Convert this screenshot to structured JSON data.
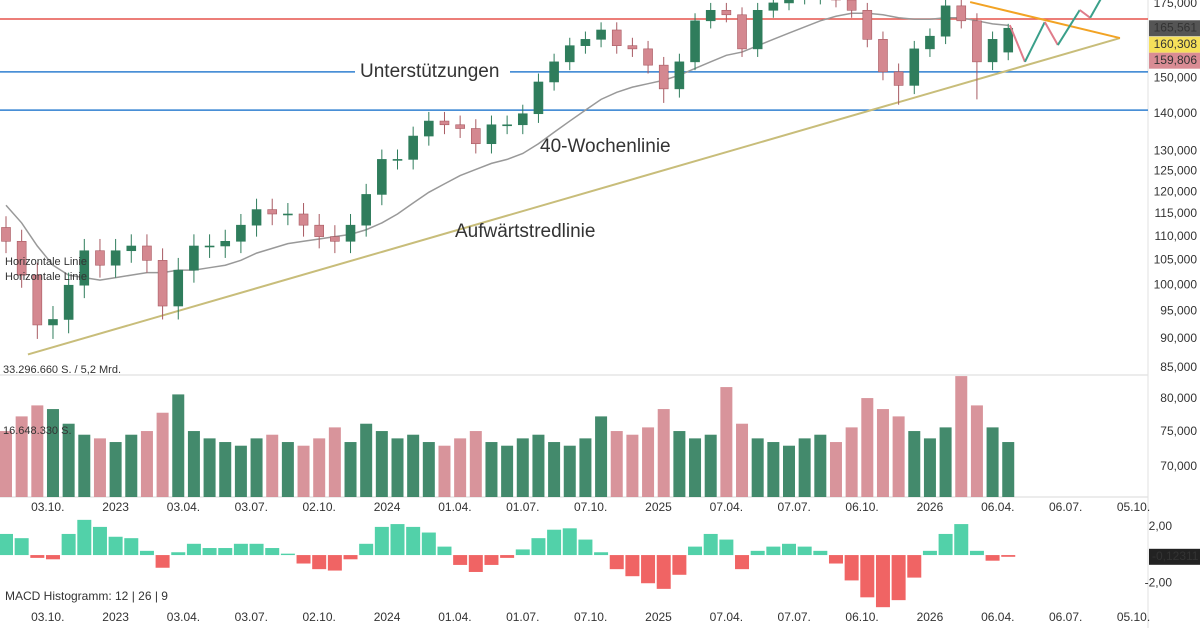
{
  "chart_data": {
    "type": "candlestick",
    "x": [
      0,
      3,
      6,
      9,
      12,
      15,
      18,
      21,
      24,
      27,
      30,
      33,
      36,
      39,
      42,
      45,
      48,
      51,
      54,
      57,
      60,
      63,
      66,
      69,
      72,
      75,
      78,
      81,
      84,
      87,
      90,
      93,
      96,
      99,
      102,
      105,
      108,
      111,
      114,
      117,
      120,
      123,
      126,
      129,
      132,
      135,
      138,
      141,
      144,
      147,
      150,
      153,
      156,
      159,
      162,
      165,
      168,
      171,
      174,
      177,
      180,
      183,
      186,
      189,
      192
    ],
    "xlim": [
      -1,
      221
    ],
    "xticks": [
      {
        "value": 8,
        "label": "03.10."
      },
      {
        "value": 21,
        "label": "2023"
      },
      {
        "value": 34,
        "label": "03.04."
      },
      {
        "value": 47,
        "label": "03.07."
      },
      {
        "value": 60,
        "label": "02.10."
      },
      {
        "value": 73,
        "label": "2024"
      },
      {
        "value": 86,
        "label": "01.04."
      },
      {
        "value": 99,
        "label": "01.07."
      },
      {
        "value": 112,
        "label": "07.10."
      },
      {
        "value": 125,
        "label": "2025"
      },
      {
        "value": 138,
        "label": "07.04."
      },
      {
        "value": 151,
        "label": "07.07."
      },
      {
        "value": 164,
        "label": "06.10."
      },
      {
        "value": 177,
        "label": "2026"
      },
      {
        "value": 190,
        "label": "06.04."
      },
      {
        "value": 203,
        "label": "06.07."
      },
      {
        "value": 216,
        "label": "05.10."
      }
    ],
    "open": [
      112000,
      109000,
      102000,
      92500,
      93500,
      100000,
      107000,
      104000,
      107000,
      108000,
      105000,
      96000,
      103000,
      108000,
      108000,
      109000,
      112500,
      116000,
      115000,
      115000,
      112500,
      110000,
      109000,
      112500,
      119500,
      128000,
      128000,
      134000,
      138000,
      137000,
      136000,
      132000,
      137000,
      137000,
      140000,
      149000,
      155000,
      160000,
      162000,
      165000,
      160000,
      159000,
      154000,
      147000,
      155000,
      168000,
      171500,
      170000,
      159000,
      171500,
      174000,
      176000,
      176000,
      176000,
      175000,
      171500,
      162000,
      152000,
      148000,
      159000,
      163000,
      173000,
      168000,
      155000,
      158000
    ],
    "high": [
      114500,
      111500,
      104500,
      96000,
      102500,
      109500,
      109500,
      109500,
      110500,
      110500,
      107500,
      105500,
      110500,
      110500,
      111500,
      115000,
      118500,
      118500,
      117500,
      117500,
      115000,
      112500,
      115000,
      122000,
      130500,
      130500,
      136500,
      140500,
      140500,
      139500,
      138500,
      139500,
      139500,
      142500,
      151500,
      157500,
      162500,
      164500,
      167500,
      167500,
      162500,
      161500,
      156500,
      157500,
      170500,
      174000,
      174000,
      172500,
      174000,
      176500,
      178500,
      178500,
      178500,
      178500,
      177500,
      174000,
      164500,
      154500,
      161500,
      165500,
      175500,
      175500,
      170500,
      164500,
      167000
    ],
    "low": [
      106500,
      99500,
      90000,
      90000,
      91000,
      97500,
      101500,
      101500,
      104500,
      102500,
      93500,
      93500,
      100500,
      105500,
      105500,
      106500,
      110000,
      112500,
      112500,
      110000,
      107500,
      106500,
      106500,
      110000,
      117000,
      125500,
      125500,
      131500,
      134500,
      133500,
      129500,
      129500,
      134500,
      134500,
      137500,
      146500,
      152500,
      157500,
      159500,
      157500,
      156500,
      151500,
      143000,
      144500,
      152500,
      165500,
      167500,
      156500,
      156500,
      169000,
      171500,
      173500,
      173500,
      172500,
      169000,
      159500,
      149500,
      142500,
      145500,
      156500,
      160500,
      165500,
      144000,
      152500,
      155500
    ],
    "close": [
      109000,
      102000,
      92500,
      93500,
      100000,
      107000,
      104000,
      107000,
      108000,
      105000,
      96000,
      103000,
      108000,
      108000,
      109000,
      112500,
      116000,
      115000,
      115000,
      112500,
      110000,
      109000,
      112500,
      119500,
      128000,
      128000,
      134000,
      138000,
      137000,
      136000,
      132000,
      137000,
      137000,
      140000,
      149000,
      155000,
      160000,
      162000,
      165000,
      160000,
      159000,
      154000,
      147000,
      155000,
      168000,
      171500,
      170000,
      159000,
      171500,
      174000,
      176000,
      176000,
      176000,
      175000,
      171500,
      162000,
      152000,
      148000,
      159000,
      163000,
      173000,
      168000,
      155000,
      162000,
      165561
    ],
    "colors": {
      "up": "#2f7d5c",
      "down": "#d48890"
    },
    "log": true,
    "ylim": [
      70000,
      175000
    ],
    "yticks": [
      {
        "value": 175000,
        "label": "175,000"
      },
      {
        "value": 150000,
        "label": "150,000"
      },
      {
        "value": 140000,
        "label": "140,000"
      },
      {
        "value": 130000,
        "label": "130,000"
      },
      {
        "value": 125000,
        "label": "125,000"
      },
      {
        "value": 120000,
        "label": "120,000"
      },
      {
        "value": 115000,
        "label": "115,000"
      },
      {
        "value": 110000,
        "label": "110,000"
      },
      {
        "value": 105000,
        "label": "105,000"
      },
      {
        "value": 100000,
        "label": "100,000"
      },
      {
        "value": 95000,
        "label": "95,000"
      },
      {
        "value": 90000,
        "label": "90,000"
      },
      {
        "value": 85000,
        "label": "85,000"
      },
      {
        "value": 80000,
        "label": "80,000"
      },
      {
        "value": 75000,
        "label": "75,000"
      },
      {
        "value": 70000,
        "label": "70,000"
      }
    ],
    "price_labels": [
      {
        "value": 165561,
        "label": "165,561",
        "color": "#555555",
        "text_color": "#ffffff"
      },
      {
        "value": 160308,
        "label": "160,308",
        "color": "#f6e05a",
        "text_color": "#222222"
      },
      {
        "value": 159806,
        "label": "159,806",
        "color": "#d98c94",
        "text_color": "#ffffff"
      }
    ],
    "horizontal_lines": [
      {
        "name": "Horizontale Linie",
        "color": "#e5534b",
        "value": 168600
      },
      {
        "name": "Horizontale Linie",
        "color": "#2f7fd1",
        "value": 152000
      },
      {
        "color": "#2f7fd1",
        "value": 141000
      }
    ],
    "annotations": [
      {
        "text": "Unterstützungen",
        "color": "#2f7fd1"
      },
      {
        "text": "40-Wochenlinie",
        "color": "#888888"
      }
    ],
    "moving_average": {
      "color": "#999999",
      "values": [
        117000,
        113000,
        108000,
        104000,
        102000,
        101500,
        101000,
        101500,
        102000,
        102500,
        102500,
        103000,
        103000,
        103500,
        104000,
        105000,
        106500,
        107500,
        108500,
        109000,
        109500,
        110000,
        110500,
        111500,
        113000,
        115000,
        117500,
        120000,
        122000,
        124000,
        125500,
        127000,
        128000,
        129500,
        132000,
        135000,
        138000,
        141000,
        144000,
        146000,
        147500,
        148500,
        149500,
        151000,
        153000,
        155000,
        157000,
        158000,
        160000,
        162000,
        164000,
        166000,
        168000,
        169500,
        170500,
        170500,
        170000,
        169000,
        168500,
        168500,
        169000,
        169000,
        168000,
        167000,
        166500
      ]
    },
    "trendlines": [
      {
        "name": "Aufwärtstredlinie",
        "color": "#c8bd7a",
        "x": [
          4.2,
          213.4
        ],
        "values": [
          87300,
          162400
        ]
      },
      {
        "color": "#f2a324",
        "x": [
          184.7,
          213.4
        ],
        "values": [
          174300,
          162400
        ]
      }
    ],
    "projection": {
      "x": [
        192.3,
        195.2,
        199.0,
        201.5,
        205.7,
        207.7,
        210.5
      ],
      "values": [
        166600,
        155000,
        167600,
        160200,
        171600,
        169000,
        177800
      ],
      "up_color": "#3aa08a",
      "down_color": "#e07b8a"
    },
    "volume": {
      "values": [
        18000000,
        22000000,
        25000000,
        24000000,
        20000000,
        17000000,
        16000000,
        15000000,
        17000000,
        18000000,
        23000000,
        28000000,
        18000000,
        16000000,
        15000000,
        14000000,
        16000000,
        17000000,
        15000000,
        14000000,
        16000000,
        19000000,
        15000000,
        20000000,
        18000000,
        16000000,
        17000000,
        15000000,
        14000000,
        16000000,
        18000000,
        15000000,
        14000000,
        16000000,
        17000000,
        15000000,
        14000000,
        16000000,
        22000000,
        18000000,
        17000000,
        19000000,
        24000000,
        18000000,
        16000000,
        17000000,
        30000000,
        20000000,
        16000000,
        15000000,
        14000000,
        16000000,
        17000000,
        15000000,
        19000000,
        27000000,
        24000000,
        22000000,
        18000000,
        16000000,
        19000000,
        33000000,
        25000000,
        19000000,
        15000000
      ],
      "ylim": [
        0,
        33296660
      ],
      "yticks": [
        {
          "value": 33296660,
          "label": "33.296.660 S. / 5,2 Mrd."
        },
        {
          "value": 16648330,
          "label": "16.648.330 S."
        }
      ]
    },
    "macd": {
      "title": "MACD Histogramm: 12 | 26 | 9",
      "values": [
        1.5,
        1.2,
        -0.2,
        -0.3,
        1.5,
        2.5,
        2.0,
        1.3,
        1.2,
        0.3,
        -0.9,
        0.2,
        0.8,
        0.5,
        0.5,
        0.8,
        0.8,
        0.5,
        0.1,
        -0.6,
        -1.0,
        -1.1,
        -0.3,
        0.8,
        2.0,
        2.2,
        2.0,
        1.6,
        0.6,
        -0.7,
        -1.2,
        -0.7,
        -0.2,
        0.4,
        1.2,
        1.8,
        1.9,
        1.1,
        0.2,
        -1.0,
        -1.5,
        -2.0,
        -2.4,
        -1.4,
        0.6,
        1.5,
        1.1,
        -1.0,
        0.3,
        0.6,
        0.8,
        0.6,
        0.3,
        -0.6,
        -1.8,
        -3.0,
        -3.7,
        -3.2,
        -1.6,
        0.3,
        1.5,
        2.2,
        0.3,
        -0.4,
        -0.12311
      ],
      "ylim": [
        -3.9,
        3.2
      ],
      "yticks": [
        {
          "value": 2,
          "label": "2,00"
        },
        {
          "value": -2,
          "label": "-2,00"
        }
      ],
      "current": {
        "value": -0.12311,
        "label": "-0,12311"
      },
      "up_color": "#52d1a9",
      "down_color": "#f06464"
    }
  }
}
